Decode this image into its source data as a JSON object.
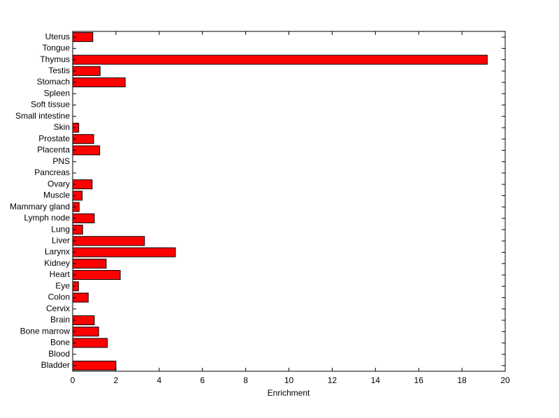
{
  "chart_data": {
    "type": "bar",
    "orientation": "horizontal",
    "title": "",
    "xlabel": "Enrichment",
    "ylabel": "",
    "xlim": [
      0,
      20
    ],
    "xticks": [
      0,
      2,
      4,
      6,
      8,
      10,
      12,
      14,
      16,
      18,
      20
    ],
    "grid": false,
    "bar_color": "#ff0000",
    "bar_edge_color": "#000000",
    "categories": [
      "Bladder",
      "Blood",
      "Bone",
      "Bone marrow",
      "Brain",
      "Cervix",
      "Colon",
      "Eye",
      "Heart",
      "Kidney",
      "Larynx",
      "Liver",
      "Lung",
      "Lymph node",
      "Mammary gland",
      "Muscle",
      "Ovary",
      "Pancreas",
      "PNS",
      "Placenta",
      "Prostate",
      "Skin",
      "Small intestine",
      "Soft tissue",
      "Spleen",
      "Stomach",
      "Testis",
      "Thymus",
      "Tongue",
      "Uterus"
    ],
    "values": [
      2.0,
      0,
      1.6,
      1.2,
      1.0,
      0,
      0.72,
      0.27,
      2.2,
      1.55,
      4.75,
      3.32,
      0.46,
      1.0,
      0.3,
      0.44,
      0.9,
      0,
      0,
      1.25,
      0.97,
      0.28,
      0,
      0,
      0,
      2.43,
      1.27,
      19.17,
      0,
      0.93
    ]
  }
}
